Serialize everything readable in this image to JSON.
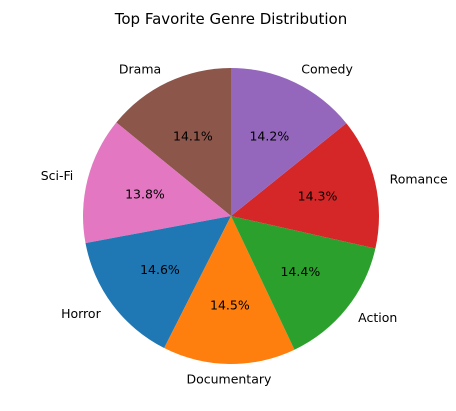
{
  "chart_data": {
    "type": "pie",
    "title": "Top Favorite Genre Distribution",
    "start_angle_deg": 90,
    "direction": "counterclockwise",
    "slices": [
      {
        "label": "Drama",
        "value": 14.1,
        "pct_label": "14.1%",
        "color": "#8c564b"
      },
      {
        "label": "Sci-Fi",
        "value": 13.8,
        "pct_label": "13.8%",
        "color": "#e377c2"
      },
      {
        "label": "Horror",
        "value": 14.6,
        "pct_label": "14.6%",
        "color": "#1f77b4"
      },
      {
        "label": "Documentary",
        "value": 14.5,
        "pct_label": "14.5%",
        "color": "#ff7f0e"
      },
      {
        "label": "Action",
        "value": 14.4,
        "pct_label": "14.4%",
        "color": "#2ca02c"
      },
      {
        "label": "Romance",
        "value": 14.3,
        "pct_label": "14.3%",
        "color": "#d62728"
      },
      {
        "label": "Comedy",
        "value": 14.2,
        "pct_label": "14.2%",
        "color": "#9467bd"
      }
    ]
  }
}
